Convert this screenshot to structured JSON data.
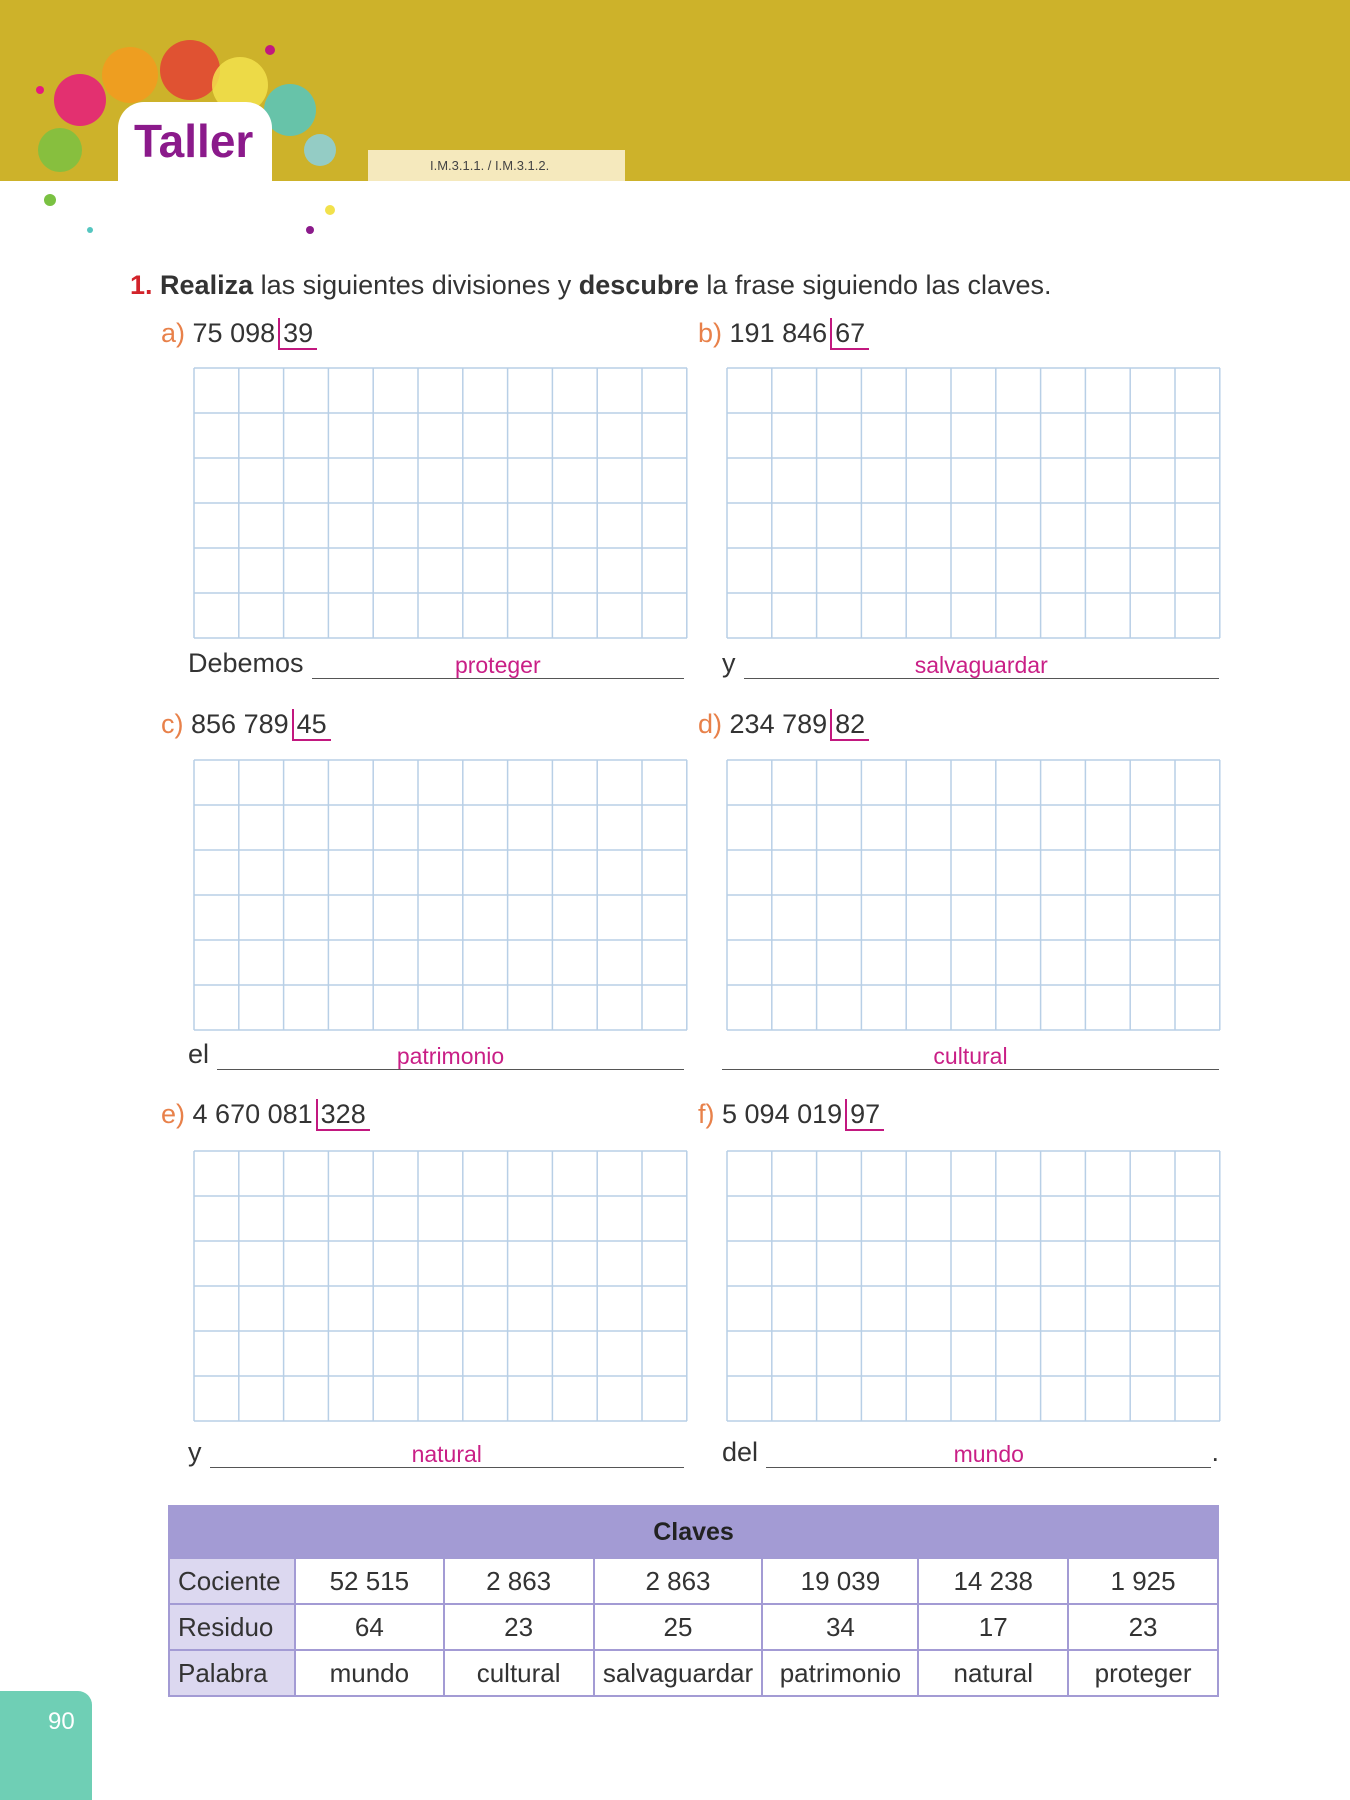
{
  "header": {
    "title": "Taller",
    "code": "I.M.3.1.1. / I.M.3.1.2."
  },
  "instruction": {
    "number": "1.",
    "parts": [
      "Realiza",
      " las siguientes divisiones y ",
      "descubre",
      " la frase siguiendo las claves."
    ]
  },
  "exercises": [
    {
      "letter": "a)",
      "dividend": "75 098",
      "divisor": "39",
      "prefix": "Debemos",
      "answer": "proteger"
    },
    {
      "letter": "b)",
      "dividend": "191 846",
      "divisor": "67",
      "prefix": "y",
      "answer": "salvaguardar"
    },
    {
      "letter": "c)",
      "dividend": "856 789",
      "divisor": "45",
      "prefix": "el",
      "answer": "patrimonio"
    },
    {
      "letter": "d)",
      "dividend": "234 789",
      "divisor": "82",
      "answer": "cultural"
    },
    {
      "letter": "e)",
      "dividend": "4 670 081",
      "divisor": "328",
      "prefix": "y",
      "answer": "natural"
    },
    {
      "letter": "f)",
      "dividend": "5 094 019",
      "divisor": "97",
      "prefix": "del",
      "answer": "mundo",
      "suffix": "."
    }
  ],
  "table": {
    "title": "Claves",
    "rows": [
      [
        "Cociente",
        "52 515",
        "2 863",
        "2 863",
        "19 039",
        "14 238",
        "1 925"
      ],
      [
        "Residuo",
        "64",
        "23",
        "25",
        "34",
        "17",
        "23"
      ],
      [
        "Palabra",
        "mundo",
        "cultural",
        "salvaguardar",
        "patrimonio",
        "natural",
        "proteger"
      ]
    ]
  },
  "page_number": "90"
}
